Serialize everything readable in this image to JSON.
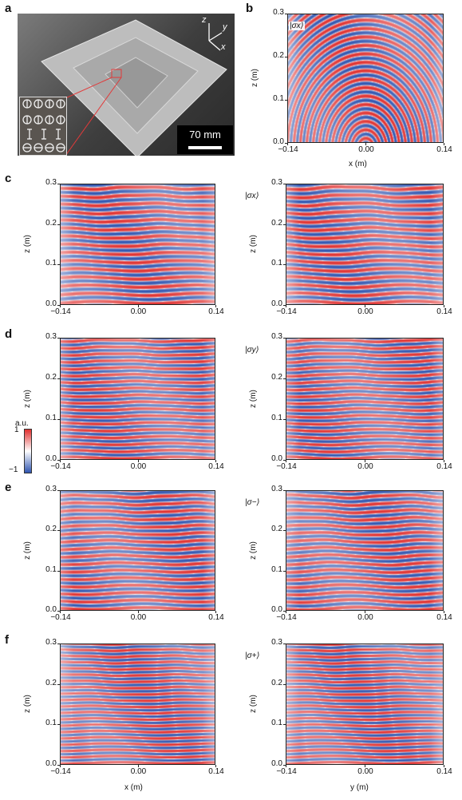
{
  "panel_labels": {
    "a": "a",
    "b": "b",
    "c": "c",
    "d": "d",
    "e": "e",
    "f": "f"
  },
  "photo": {
    "scale_bar": "70 mm",
    "axes": {
      "z": "z",
      "y": "y",
      "x": "x"
    }
  },
  "states": {
    "b": "|σx⟩",
    "c": "|σx⟩",
    "d": "|σy⟩",
    "e": "|σ−⟩",
    "f": "|σ+⟩"
  },
  "axis": {
    "z_label": "z (m)",
    "x_label": "x (m)",
    "y_label": "y (m)",
    "z_ticks": [
      "0.3",
      "0.2",
      "0.1",
      "0.0"
    ],
    "h_ticks": [
      "−0.14",
      "0.00",
      "0.14"
    ]
  },
  "colorbar": {
    "unit": "a.u.",
    "max": "1",
    "min": "−1",
    "colors": {
      "pos": "#e0302f",
      "zero": "#ffffff",
      "neg": "#2f55b0"
    }
  }
}
